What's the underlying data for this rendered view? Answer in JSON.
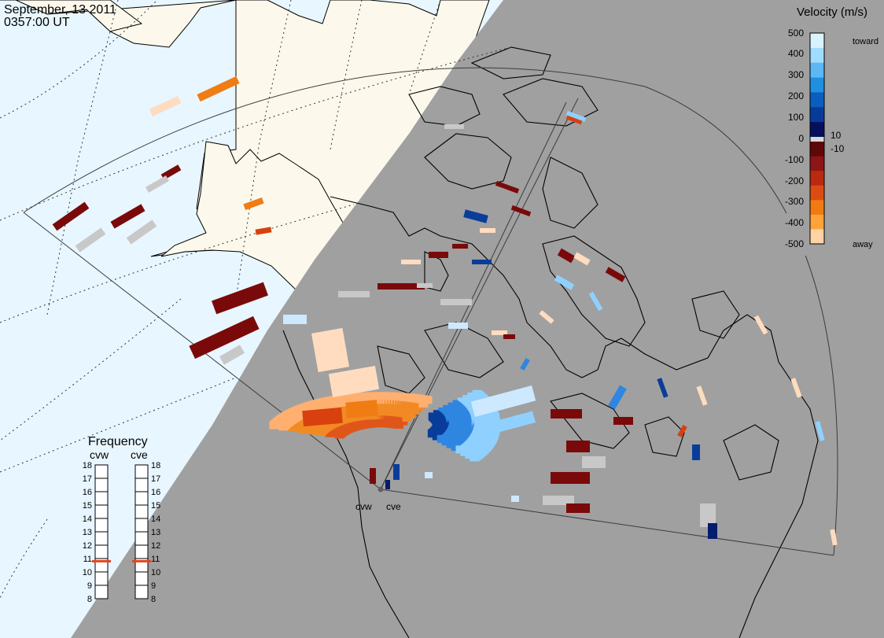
{
  "header": {
    "date": "September, 13 2011",
    "time": "0357:00 UT"
  },
  "velocity_legend": {
    "title": "Velocity (m/s)",
    "toward_label": "toward",
    "away_label": "away",
    "ticks": [
      "500",
      "400",
      "300",
      "200",
      "100",
      "10",
      "0",
      "-10",
      "-100",
      "-200",
      "-300",
      "-400",
      "-500"
    ],
    "colors": [
      "#d9f2ff",
      "#9fdcff",
      "#5bb8f5",
      "#1f8fe0",
      "#0a5ec0",
      "#073b9a",
      "#050f5c",
      "#d8d8d8",
      "#5e0808",
      "#8f1414",
      "#b92a10",
      "#dc4b12",
      "#f27a12",
      "#ffa23a",
      "#ffd3a4"
    ]
  },
  "frequency_panel": {
    "title": "Frequency",
    "radars": [
      "cvw",
      "cve"
    ],
    "ticks": [
      "18",
      "17",
      "16",
      "15",
      "14",
      "13",
      "12",
      "11",
      "10",
      "9",
      "8"
    ],
    "cvw_value": 10.8,
    "cve_value": 10.8,
    "marker_color": "#e0461e"
  },
  "radar_sites": [
    {
      "name": "cvw"
    },
    {
      "name": "cve"
    }
  ],
  "colors": {
    "day_ocean": "#e8f6ff",
    "day_land": "#fcf9ec",
    "night": "#a0a0a0",
    "coast": "#000000"
  }
}
